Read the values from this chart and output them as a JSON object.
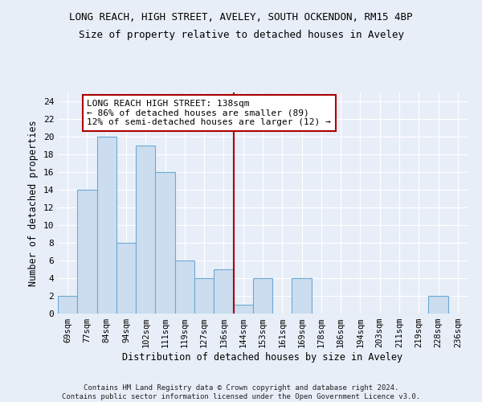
{
  "title": "LONG REACH, HIGH STREET, AVELEY, SOUTH OCKENDON, RM15 4BP",
  "subtitle": "Size of property relative to detached houses in Aveley",
  "xlabel": "Distribution of detached houses by size in Aveley",
  "ylabel": "Number of detached properties",
  "categories": [
    "69sqm",
    "77sqm",
    "84sqm",
    "94sqm",
    "102sqm",
    "111sqm",
    "119sqm",
    "127sqm",
    "136sqm",
    "144sqm",
    "153sqm",
    "161sqm",
    "169sqm",
    "178sqm",
    "186sqm",
    "194sqm",
    "203sqm",
    "211sqm",
    "219sqm",
    "228sqm",
    "236sqm"
  ],
  "values": [
    2,
    14,
    20,
    8,
    19,
    16,
    6,
    4,
    5,
    1,
    4,
    0,
    4,
    0,
    0,
    0,
    0,
    0,
    0,
    2,
    0
  ],
  "bar_color": "#ccddf0",
  "bar_edge_color": "#6aaad4",
  "vline_x_index": 8.5,
  "vline_color": "#aa0000",
  "annotation_text": "LONG REACH HIGH STREET: 138sqm\n← 86% of detached houses are smaller (89)\n12% of semi-detached houses are larger (12) →",
  "annotation_box_color": "#ffffff",
  "annotation_box_edge_color": "#aa0000",
  "ylim": [
    0,
    25
  ],
  "yticks": [
    0,
    2,
    4,
    6,
    8,
    10,
    12,
    14,
    16,
    18,
    20,
    22,
    24
  ],
  "background_color": "#e8eef8",
  "grid_color": "#ffffff",
  "title_fontsize": 9,
  "subtitle_fontsize": 9,
  "footer": "Contains HM Land Registry data © Crown copyright and database right 2024.\nContains public sector information licensed under the Open Government Licence v3.0."
}
